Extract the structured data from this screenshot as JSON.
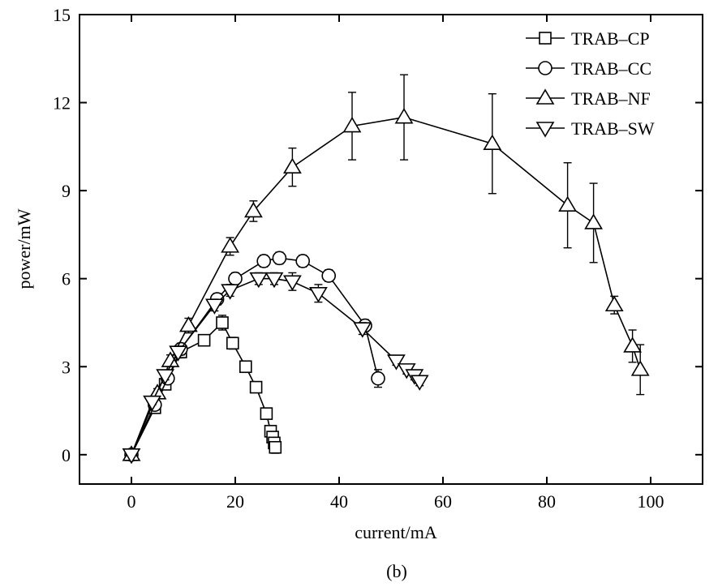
{
  "chart_data": {
    "type": "scatter",
    "title": "",
    "xlabel": "current/mA",
    "ylabel": "power/mW",
    "caption": "(b)",
    "xlim": [
      -10,
      110
    ],
    "ylim": [
      -1,
      15
    ],
    "xticks": [
      0,
      20,
      40,
      60,
      80,
      100
    ],
    "yticks": [
      0,
      3,
      6,
      9,
      12,
      15
    ],
    "grid": false,
    "legend_position": "top-right",
    "series": [
      {
        "name": "TRAB–CP",
        "marker": "square",
        "x": [
          0,
          4.5,
          6.5,
          9.5,
          14,
          17.5,
          19.5,
          22,
          24,
          26,
          26.8,
          27.2,
          27.5,
          27.7
        ],
        "y": [
          0,
          1.6,
          2.4,
          3.5,
          3.9,
          4.5,
          3.8,
          3.0,
          2.3,
          1.4,
          0.8,
          0.6,
          0.4,
          0.25
        ],
        "err": [
          0,
          0.12,
          0.15,
          0.2,
          0.15,
          0.25,
          0.2,
          0.15,
          0.15,
          0.1,
          0.1,
          0.1,
          0.15,
          0.2
        ]
      },
      {
        "name": "TRAB–CC",
        "marker": "circle",
        "x": [
          0,
          4.5,
          7,
          9.5,
          16.5,
          20,
          25.5,
          28.5,
          33,
          38,
          45,
          47.5
        ],
        "y": [
          0,
          1.7,
          2.6,
          3.6,
          5.3,
          6.0,
          6.6,
          6.7,
          6.6,
          6.1,
          4.4,
          2.6
        ],
        "err": [
          0,
          0.1,
          0.15,
          0.2,
          0.2,
          0.2,
          0.2,
          0.2,
          0.2,
          0.2,
          0.2,
          0.3
        ]
      },
      {
        "name": "TRAB–NF",
        "marker": "triangle-up",
        "x": [
          0,
          5,
          7.5,
          11,
          19,
          23.5,
          31,
          42.5,
          52.5,
          69.5,
          84,
          89,
          93,
          96.5,
          98
        ],
        "y": [
          0,
          2.1,
          3.2,
          4.4,
          7.1,
          8.3,
          9.8,
          11.2,
          11.5,
          10.6,
          8.5,
          7.9,
          5.1,
          3.7,
          2.9
        ],
        "err": [
          0,
          0.15,
          0.2,
          0.25,
          0.3,
          0.35,
          0.65,
          1.15,
          1.45,
          1.7,
          1.45,
          1.35,
          0.3,
          0.55,
          0.85
        ]
      },
      {
        "name": "TRAB–SW",
        "marker": "triangle-down",
        "x": [
          0,
          4,
          6.5,
          9,
          16,
          19,
          24.5,
          27.5,
          31,
          36,
          44.5,
          51,
          53,
          54.5,
          55.5
        ],
        "y": [
          0,
          1.8,
          2.7,
          3.5,
          5.1,
          5.6,
          6.0,
          6.0,
          5.9,
          5.5,
          4.3,
          3.2,
          2.9,
          2.7,
          2.5
        ],
        "err": [
          0,
          0.1,
          0.15,
          0.2,
          0.2,
          0.2,
          0.2,
          0.2,
          0.3,
          0.3,
          0.2,
          0.15,
          0.15,
          0.15,
          0.15
        ]
      }
    ]
  }
}
